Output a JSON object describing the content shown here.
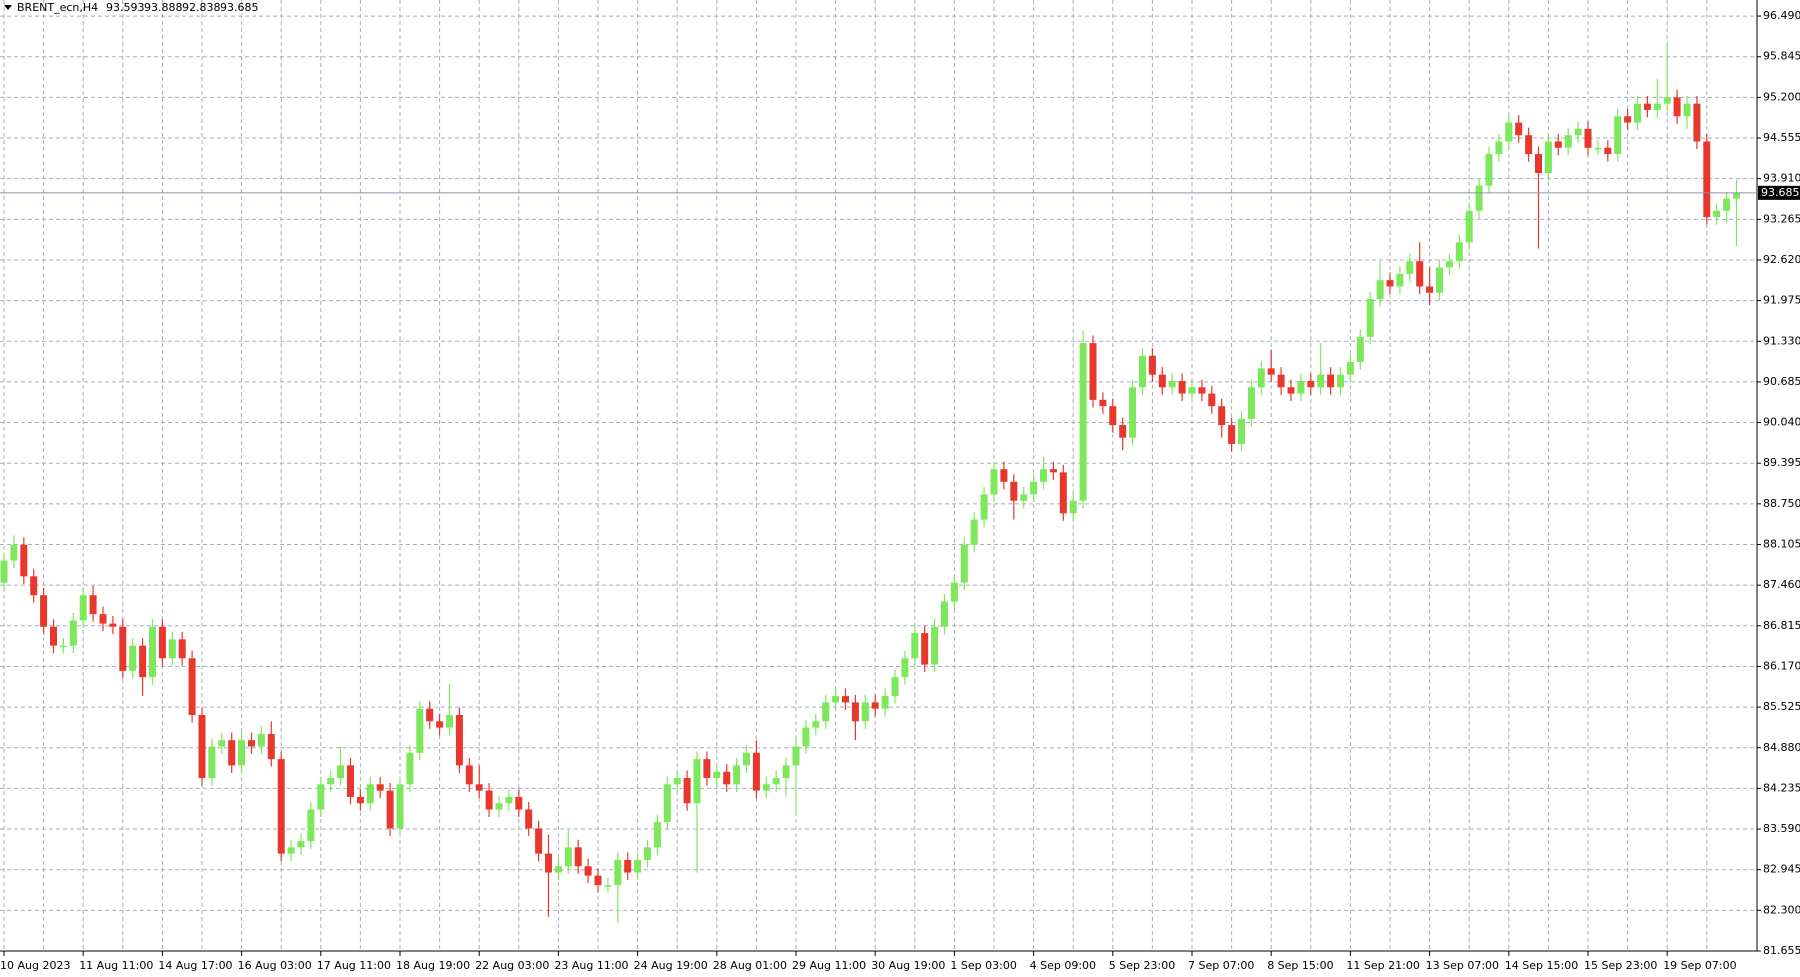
{
  "chart_data": {
    "type": "candlestick",
    "title": "BRENT_ecn,H4",
    "categories": [
      "10 Aug 2023",
      null,
      null,
      null,
      null,
      null,
      null,
      null,
      "11 Aug 11:00",
      null,
      null,
      null,
      null,
      null,
      null,
      null,
      "14 Aug 17:00",
      null,
      null,
      null,
      null,
      null,
      null,
      null,
      "16 Aug 03:00",
      null,
      null,
      null,
      null,
      null,
      null,
      null,
      "17 Aug 11:00",
      null,
      null,
      null,
      null,
      null,
      null,
      null,
      "18 Aug 19:00",
      null,
      null,
      null,
      null,
      null,
      null,
      null,
      "22 Aug 03:00",
      null,
      null,
      null,
      null,
      null,
      null,
      null,
      "23 Aug 11:00",
      null,
      null,
      null,
      null,
      null,
      null,
      null,
      "24 Aug 19:00",
      null,
      null,
      null,
      null,
      null,
      null,
      null,
      "28 Aug 01:00",
      null,
      null,
      null,
      null,
      null,
      null,
      null,
      "29 Aug 11:00",
      null,
      null,
      null,
      null,
      null,
      null,
      null,
      "30 Aug 19:00",
      null,
      null,
      null,
      null,
      null,
      null,
      null,
      "1 Sep 03:00",
      null,
      null,
      null,
      null,
      null,
      null,
      null,
      "4 Sep 09:00",
      null,
      null,
      null,
      null,
      null,
      null,
      null,
      "5 Sep 23:00",
      null,
      null,
      null,
      null,
      null,
      null,
      null,
      "7 Sep 07:00",
      null,
      null,
      null,
      null,
      null,
      null,
      null,
      "8 Sep 15:00",
      null,
      null,
      null,
      null,
      null,
      null,
      null,
      "11 Sep 21:00",
      null,
      null,
      null,
      null,
      null,
      null,
      null,
      "13 Sep 07:00",
      null,
      null,
      null,
      null,
      null,
      null,
      null,
      "14 Sep 15:00",
      null,
      null,
      null,
      null,
      null,
      null,
      null,
      "15 Sep 23:00",
      null,
      null,
      null,
      null,
      null,
      null,
      null,
      "19 Sep 07:00",
      null,
      null,
      null,
      null,
      null,
      null,
      null
    ],
    "open": [
      87.5,
      87.85,
      88.1,
      87.6,
      87.3,
      86.8,
      86.5,
      86.5,
      86.9,
      87.3,
      87.0,
      86.85,
      86.8,
      86.1,
      86.5,
      86.0,
      86.8,
      86.3,
      86.6,
      86.3,
      85.4,
      84.4,
      84.9,
      85.0,
      84.6,
      85.0,
      84.9,
      85.1,
      84.7,
      83.2,
      83.3,
      83.4,
      83.9,
      84.3,
      84.4,
      84.6,
      84.1,
      84.0,
      84.3,
      84.2,
      83.6,
      84.3,
      84.8,
      85.5,
      85.3,
      85.2,
      85.4,
      84.6,
      84.3,
      84.2,
      83.9,
      84.0,
      84.1,
      83.9,
      83.6,
      83.2,
      82.9,
      83.0,
      83.3,
      83.0,
      82.85,
      82.7,
      82.7,
      83.1,
      82.9,
      83.1,
      83.3,
      83.7,
      84.3,
      84.4,
      84.0,
      84.7,
      84.4,
      84.5,
      84.3,
      84.6,
      84.8,
      84.2,
      84.3,
      84.4,
      84.6,
      84.9,
      85.2,
      85.3,
      85.6,
      85.7,
      85.6,
      85.3,
      85.6,
      85.5,
      85.7,
      86.0,
      86.3,
      86.7,
      86.2,
      86.8,
      87.2,
      87.5,
      88.1,
      88.5,
      88.9,
      89.3,
      89.1,
      88.8,
      88.9,
      89.1,
      89.3,
      89.25,
      88.6,
      88.8,
      91.3,
      90.4,
      90.3,
      90.0,
      89.8,
      90.6,
      91.1,
      90.8,
      90.6,
      90.7,
      90.5,
      90.6,
      90.5,
      90.3,
      90.0,
      89.7,
      90.1,
      90.6,
      90.9,
      90.8,
      90.6,
      90.5,
      90.7,
      90.6,
      90.8,
      90.6,
      90.8,
      91.0,
      91.4,
      92.0,
      92.3,
      92.2,
      92.4,
      92.6,
      92.2,
      92.1,
      92.5,
      92.6,
      92.9,
      93.4,
      93.8,
      94.3,
      94.5,
      94.8,
      94.6,
      94.3,
      94.0,
      94.5,
      94.4,
      94.6,
      94.7,
      94.4,
      94.4,
      94.3,
      94.9,
      94.8,
      95.1,
      95.0,
      95.1,
      95.2,
      94.9,
      95.1,
      94.5,
      93.3,
      93.4,
      93.593
    ],
    "high": [
      87.97,
      88.25,
      88.22,
      87.72,
      87.42,
      86.92,
      86.62,
      87.02,
      87.42,
      87.45,
      87.12,
      86.97,
      86.92,
      86.62,
      86.62,
      86.92,
      86.92,
      86.72,
      86.72,
      86.42,
      85.52,
      85.02,
      85.12,
      85.12,
      85.12,
      85.12,
      85.22,
      85.3,
      84.82,
      83.42,
      83.52,
      84.02,
      84.42,
      84.52,
      84.9,
      84.72,
      84.22,
      84.42,
      84.42,
      84.32,
      84.42,
      84.92,
      85.62,
      85.62,
      85.42,
      85.9,
      85.52,
      84.72,
      84.6,
      84.32,
      84.12,
      84.22,
      84.22,
      84.02,
      83.72,
      83.5,
      83.12,
      83.6,
      83.42,
      83.12,
      82.97,
      82.82,
      83.22,
      83.22,
      83.22,
      83.42,
      83.82,
      84.42,
      84.52,
      84.52,
      84.82,
      84.82,
      84.62,
      84.62,
      84.72,
      84.92,
      85.0,
      84.42,
      84.52,
      84.72,
      85.02,
      85.32,
      85.42,
      85.72,
      85.82,
      85.82,
      85.72,
      85.72,
      85.72,
      85.82,
      86.12,
      86.42,
      86.82,
      86.82,
      86.92,
      87.32,
      87.62,
      88.22,
      88.62,
      89.02,
      89.42,
      89.42,
      89.22,
      89.02,
      89.22,
      89.5,
      89.42,
      89.37,
      88.92,
      91.5,
      91.42,
      90.52,
      90.42,
      90.12,
      90.72,
      91.22,
      91.22,
      90.92,
      90.82,
      90.82,
      90.72,
      90.72,
      90.62,
      90.42,
      90.12,
      90.22,
      90.72,
      91.02,
      91.2,
      90.92,
      90.72,
      90.82,
      90.82,
      91.3,
      90.92,
      90.92,
      91.12,
      91.52,
      92.12,
      92.6,
      92.42,
      92.52,
      92.72,
      92.9,
      92.5,
      92.62,
      92.72,
      93.02,
      93.52,
      93.92,
      94.42,
      94.62,
      94.92,
      94.92,
      94.72,
      94.42,
      94.62,
      94.62,
      94.72,
      94.82,
      94.82,
      94.52,
      94.52,
      95.02,
      95.02,
      95.22,
      95.22,
      95.5,
      96.05,
      95.32,
      95.22,
      95.22,
      94.62,
      93.52,
      93.7,
      93.888
    ],
    "low": [
      87.38,
      87.73,
      87.48,
      87.18,
      86.68,
      86.38,
      86.38,
      86.38,
      86.78,
      86.88,
      86.73,
      86.68,
      85.98,
      85.98,
      85.7,
      85.88,
      86.18,
      86.18,
      86.18,
      85.28,
      84.28,
      84.28,
      84.78,
      84.48,
      84.48,
      84.78,
      84.78,
      84.58,
      83.08,
      83.08,
      83.18,
      83.28,
      83.78,
      84.18,
      84.28,
      83.98,
      83.88,
      83.88,
      84.08,
      83.48,
      83.48,
      84.18,
      84.68,
      85.18,
      85.08,
      85.08,
      84.48,
      84.18,
      84.08,
      83.78,
      83.78,
      83.88,
      83.78,
      83.48,
      83.08,
      82.2,
      82.78,
      82.88,
      82.88,
      82.73,
      82.58,
      82.58,
      82.1,
      82.78,
      82.78,
      82.98,
      83.18,
      83.58,
      84.18,
      83.88,
      82.9,
      84.28,
      84.28,
      84.18,
      84.18,
      84.48,
      84.08,
      84.08,
      84.18,
      84.1,
      83.8,
      84.78,
      85.08,
      85.18,
      85.48,
      85.48,
      85.0,
      85.18,
      85.38,
      85.38,
      85.58,
      85.88,
      86.18,
      86.08,
      86.08,
      86.68,
      87.08,
      87.38,
      87.98,
      88.38,
      88.78,
      88.98,
      88.5,
      88.68,
      88.78,
      88.98,
      89.13,
      88.48,
      88.48,
      88.68,
      90.28,
      90.18,
      89.88,
      89.6,
      89.68,
      90.48,
      90.68,
      90.48,
      90.48,
      90.38,
      90.38,
      90.38,
      90.18,
      89.8,
      89.58,
      89.58,
      89.98,
      90.48,
      90.68,
      90.48,
      90.38,
      90.38,
      90.48,
      90.48,
      90.48,
      90.48,
      90.68,
      90.88,
      91.28,
      91.88,
      92.08,
      92.08,
      92.28,
      92.08,
      91.9,
      91.98,
      92.38,
      92.48,
      92.78,
      93.28,
      93.68,
      94.18,
      94.38,
      94.48,
      94.18,
      92.8,
      93.88,
      94.28,
      94.28,
      94.48,
      94.28,
      94.28,
      94.18,
      94.18,
      94.68,
      94.68,
      94.88,
      94.88,
      94.98,
      94.78,
      94.7,
      94.38,
      93.18,
      93.18,
      93.2,
      92.838
    ],
    "close": [
      87.85,
      88.1,
      87.6,
      87.3,
      86.8,
      86.5,
      86.5,
      86.9,
      87.3,
      87.0,
      86.85,
      86.8,
      86.1,
      86.5,
      86.0,
      86.8,
      86.3,
      86.6,
      86.3,
      85.4,
      84.4,
      84.9,
      85.0,
      84.6,
      85.0,
      84.9,
      85.1,
      84.7,
      83.2,
      83.3,
      83.4,
      83.9,
      84.3,
      84.4,
      84.6,
      84.1,
      84.0,
      84.3,
      84.2,
      83.6,
      84.3,
      84.8,
      85.5,
      85.3,
      85.2,
      85.4,
      84.6,
      84.3,
      84.2,
      83.9,
      84.0,
      84.1,
      83.9,
      83.6,
      83.2,
      82.9,
      83.0,
      83.3,
      83.0,
      82.85,
      82.7,
      82.7,
      83.1,
      82.9,
      83.1,
      83.3,
      83.7,
      84.3,
      84.4,
      84.0,
      84.7,
      84.4,
      84.5,
      84.3,
      84.6,
      84.8,
      84.2,
      84.3,
      84.4,
      84.6,
      84.9,
      85.2,
      85.3,
      85.6,
      85.7,
      85.6,
      85.3,
      85.6,
      85.5,
      85.7,
      86.0,
      86.3,
      86.7,
      86.2,
      86.8,
      87.2,
      87.5,
      88.1,
      88.5,
      88.9,
      89.3,
      89.1,
      88.8,
      88.9,
      89.1,
      89.3,
      89.25,
      88.6,
      88.8,
      91.3,
      90.4,
      90.3,
      90.0,
      89.8,
      90.6,
      91.1,
      90.8,
      90.6,
      90.7,
      90.5,
      90.6,
      90.5,
      90.3,
      90.0,
      89.7,
      90.1,
      90.6,
      90.9,
      90.8,
      90.6,
      90.5,
      90.7,
      90.6,
      90.8,
      90.6,
      90.8,
      91.0,
      91.4,
      92.0,
      92.3,
      92.2,
      92.4,
      92.6,
      92.2,
      92.1,
      92.5,
      92.6,
      92.9,
      93.4,
      93.8,
      94.3,
      94.5,
      94.8,
      94.6,
      94.3,
      94.0,
      94.5,
      94.4,
      94.6,
      94.7,
      94.4,
      94.4,
      94.3,
      94.9,
      94.8,
      95.1,
      95.0,
      95.1,
      95.2,
      94.9,
      95.1,
      94.5,
      93.3,
      93.4,
      93.593,
      93.685
    ],
    "up_color": "#7ee85c",
    "down_color": "#e8372c",
    "ylim": [
      81.655,
      96.745
    ],
    "yticks": [
      81.655,
      {
        "value": 82.3,
        "label": "82.300"
      },
      82.945,
      {
        "value": 83.59,
        "label": "83.590"
      },
      84.235,
      {
        "value": 84.88,
        "label": "84.880"
      },
      85.525,
      {
        "value": 86.17,
        "label": "86.170"
      },
      86.815,
      {
        "value": 87.46,
        "label": "87.460"
      },
      88.105,
      {
        "value": 88.75,
        "label": "88.750"
      },
      89.395,
      {
        "value": 90.04,
        "label": "90.040"
      },
      90.685,
      {
        "value": 91.33,
        "label": "91.330"
      },
      91.975,
      {
        "value": 92.62,
        "label": "92.620"
      },
      93.265,
      {
        "value": 93.91,
        "label": "93.910"
      },
      94.555,
      {
        "value": 95.2,
        "label": "95.200"
      },
      95.845,
      {
        "value": 96.49,
        "label": "96.490"
      }
    ],
    "grid": true
  }
}
